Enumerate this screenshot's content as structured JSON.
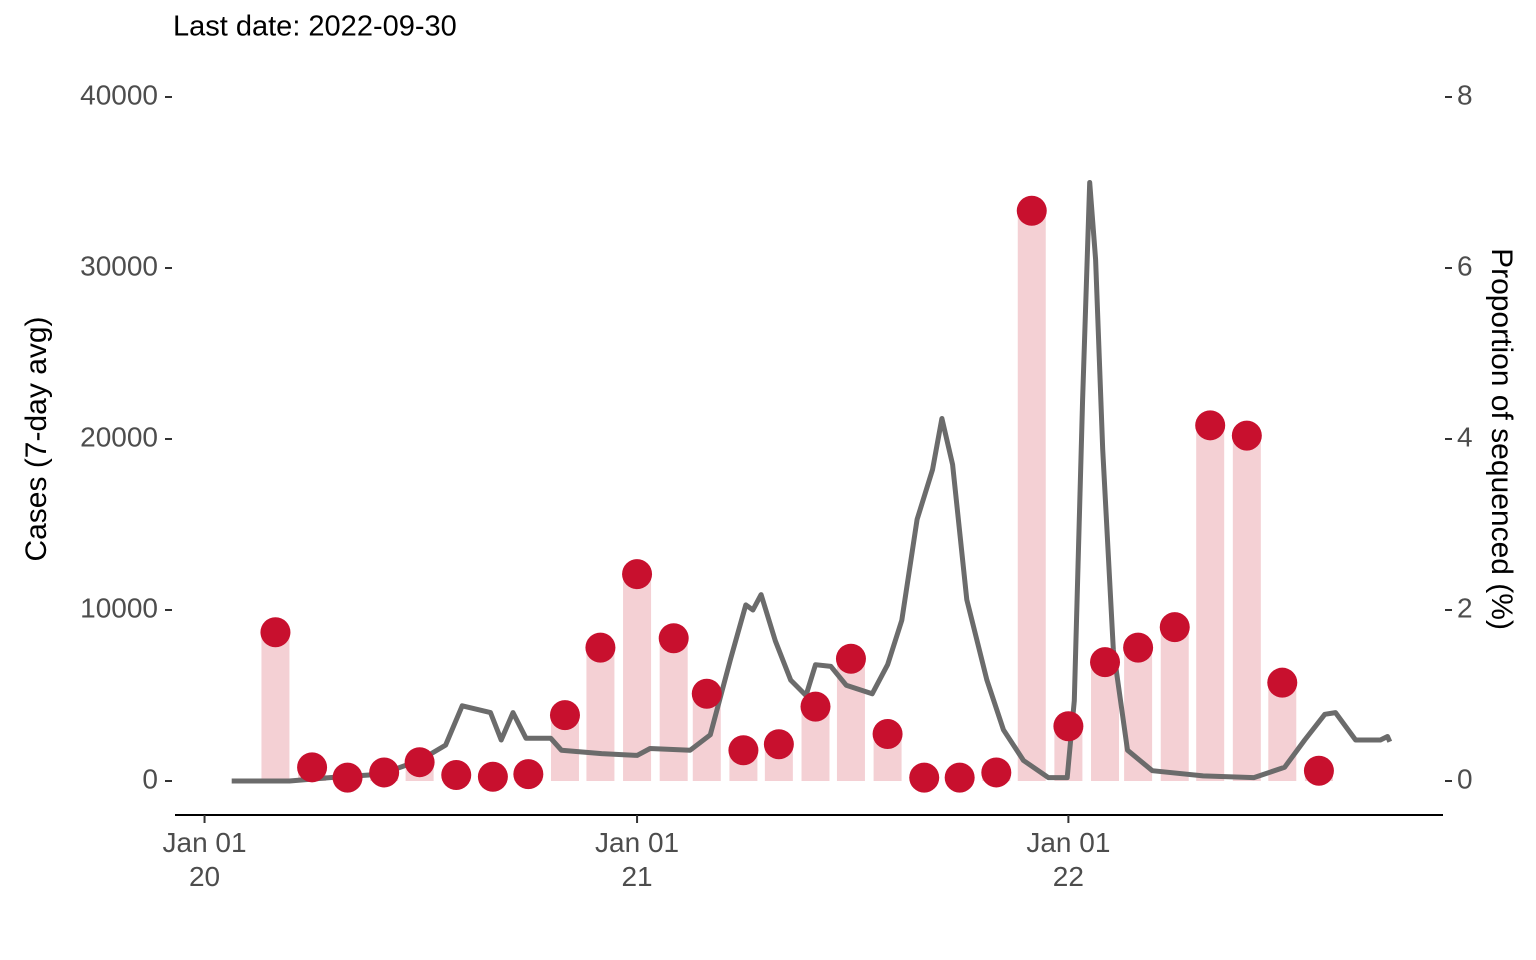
{
  "chart_data": {
    "type": "combo",
    "subtitle": "Last date: 2022-09-30",
    "y_label": "Cases (7-day avg)",
    "y2_label": "Proportion of sequenced (%)",
    "xlim": [
      "2019-12-07",
      "2022-11-14"
    ],
    "xticks": [
      {
        "value": "2020-01-01",
        "label": "Jan 01\n20"
      },
      {
        "value": "2021-01-01",
        "label": "Jan 01\n21"
      },
      {
        "value": "2022-01-01",
        "label": "Jan 01\n22"
      }
    ],
    "ylim": [
      -2000,
      40000
    ],
    "yticks": [
      0,
      10000,
      20000,
      30000,
      40000
    ],
    "y2lim": [
      -0.4,
      8
    ],
    "y2ticks": [
      0,
      2,
      4,
      6,
      8
    ],
    "series": [
      {
        "type": "bar",
        "axis": "y2",
        "color": "#f4d0d4",
        "point_color": "#c8102e",
        "x": [
          "2020-03-01",
          "2020-04-01",
          "2020-05-01",
          "2020-06-01",
          "2020-07-01",
          "2020-08-01",
          "2020-09-01",
          "2020-10-01",
          "2020-11-01",
          "2020-12-01",
          "2021-01-01",
          "2021-02-01",
          "2021-03-01",
          "2021-04-01",
          "2021-05-01",
          "2021-06-01",
          "2021-07-01",
          "2021-08-01",
          "2021-09-01",
          "2021-10-01",
          "2021-11-01",
          "2021-12-01",
          "2022-01-01",
          "2022-02-01",
          "2022-03-01",
          "2022-04-01",
          "2022-05-01",
          "2022-06-01",
          "2022-07-01",
          "2022-08-01"
        ],
        "values": [
          1.74,
          0.16,
          0.04,
          0.1,
          0.22,
          0.07,
          0.05,
          0.08,
          0.77,
          1.56,
          2.42,
          1.67,
          1.02,
          0.36,
          0.43,
          0.87,
          1.43,
          0.55,
          0.04,
          0.04,
          0.1,
          6.67,
          0.64,
          1.39,
          1.56,
          1.8,
          4.16,
          4.04,
          1.15,
          0.12
        ]
      },
      {
        "type": "line",
        "color": "#6b6b6b",
        "x": [
          "2020-01-24",
          "2020-03-13",
          "2020-04-16",
          "2020-05-29",
          "2020-07-01",
          "2020-07-23",
          "2020-08-06",
          "2020-08-30",
          "2020-09-08",
          "2020-09-18",
          "2020-09-29",
          "2020-10-20",
          "2020-10-29",
          "2020-12-02",
          "2021-01-01",
          "2021-01-12",
          "2021-02-15",
          "2021-03-04",
          "2021-03-21",
          "2021-04-03",
          "2021-04-09",
          "2021-04-16",
          "2021-04-28",
          "2021-05-11",
          "2021-05-24",
          "2021-06-01",
          "2021-06-14",
          "2021-06-27",
          "2021-07-19",
          "2021-08-01",
          "2021-08-13",
          "2021-08-26",
          "2021-09-08",
          "2021-09-16",
          "2021-09-25",
          "2021-10-07",
          "2021-10-24",
          "2021-11-07",
          "2021-11-24",
          "2021-12-15",
          "2021-12-31",
          "2022-01-06",
          "2022-01-13",
          "2022-01-19",
          "2022-01-24",
          "2022-01-30",
          "2022-02-08",
          "2022-02-20",
          "2022-03-13",
          "2022-04-25",
          "2022-06-07",
          "2022-07-03",
          "2022-07-20",
          "2022-08-06",
          "2022-08-15",
          "2022-09-01",
          "2022-09-22",
          "2022-09-28",
          "2022-09-30"
        ],
        "values": [
          0,
          0,
          200,
          400,
          1200,
          2100,
          4400,
          4000,
          2400,
          4000,
          2500,
          2500,
          1800,
          1600,
          1500,
          1900,
          1800,
          2700,
          7100,
          10300,
          10000,
          10900,
          8200,
          5900,
          5000,
          6800,
          6700,
          5600,
          5100,
          6800,
          9400,
          15300,
          18200,
          21200,
          18500,
          10600,
          5900,
          3000,
          1200,
          200,
          200,
          4700,
          22300,
          35000,
          30500,
          19400,
          7700,
          1800,
          600,
          300,
          200,
          800,
          2400,
          3900,
          4000,
          2400,
          2400,
          2600,
          2300
        ]
      }
    ]
  }
}
